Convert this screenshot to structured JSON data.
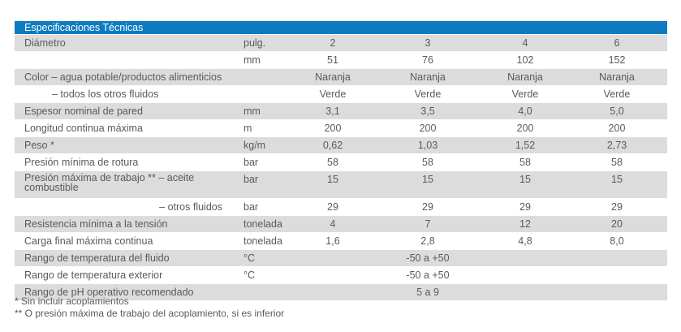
{
  "header": {
    "title": "Especificaciones Técnicas"
  },
  "table": {
    "rows": [
      {
        "label": "Diámetro",
        "unit": "pulg.",
        "values": [
          "2",
          "3",
          "4",
          "6"
        ]
      },
      {
        "unit": "mm",
        "values": [
          "51",
          "76",
          "102",
          "152"
        ]
      },
      {
        "label": "Color – agua potable/productos alimenticios",
        "values": [
          "Naranja",
          "Naranja",
          "Naranja",
          "Naranja"
        ]
      },
      {
        "label": "– todos los otros fluidos",
        "values": [
          "Verde",
          "Verde",
          "Verde",
          "Verde"
        ]
      },
      {
        "label": "Espesor nominal de pared",
        "unit": "mm",
        "values": [
          "3,1",
          "3,5",
          "4,0",
          "5,0"
        ]
      },
      {
        "label": "Longitud continua máxima",
        "unit": "m",
        "values": [
          "200",
          "200",
          "200",
          "200"
        ]
      },
      {
        "label": "Peso *",
        "unit": "kg/m",
        "values": [
          "0,62",
          "1,03",
          "1,52",
          "2,73"
        ]
      },
      {
        "label": "Presión mínima de rotura",
        "unit": "bar",
        "values": [
          "58",
          "58",
          "58",
          "58"
        ]
      },
      {
        "label": "Presión máxima de trabajo ** – aceite combustible",
        "unit": "bar",
        "values": [
          "15",
          "15",
          "15",
          "15"
        ]
      },
      {
        "label": "– otros fluidos",
        "unit": "bar",
        "values": [
          "29",
          "29",
          "29",
          "29"
        ]
      },
      {
        "label": "Resistencia mínima a la tensión",
        "unit": "tonelada",
        "values": [
          "4",
          "7",
          "12",
          "20"
        ]
      },
      {
        "label": "Carga final máxima continua",
        "unit": "tonelada",
        "values": [
          "1,6",
          "2,8",
          "4,8",
          "8,0"
        ]
      },
      {
        "label": "Rango de temperatura del fluido",
        "unit": "°C",
        "merged": "-50 a +50"
      },
      {
        "label": "Rango de temperatura exterior",
        "unit": "°C",
        "merged": "-50 a +50"
      },
      {
        "label": "Rango de pH operativo recomendado",
        "merged": "5 a 9"
      }
    ]
  },
  "footnotes": [
    "* Sin incluir acoplamientos",
    "** O presión máxima de trabajo del acoplamiento, si es inferior"
  ]
}
